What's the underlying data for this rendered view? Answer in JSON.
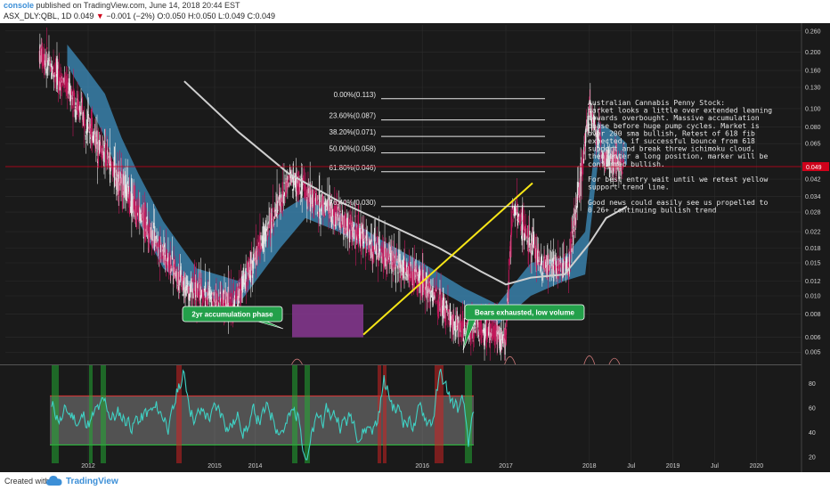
{
  "header": {
    "user": "console",
    "published": "published on TradingView.com, June 14, 2018 20:44 EST",
    "symbol_line_prefix": "ASX_DLY:QBL, 1D 0.049",
    "change": "−0.001 (−2%)",
    "ohlc": "O:0.050 H:0.050 L:0.049 C:0.049"
  },
  "footer": {
    "created": "Created with",
    "brand": "TradingView"
  },
  "colors": {
    "background": "#1a1a1a",
    "candle_up": "#e6e6e6",
    "candle_down": "#c2185b",
    "cloud": "#3d8fbf",
    "sma": "#cfcfcf",
    "trendline": "#f7e617",
    "rsi": "#3fd1c4",
    "price_tag": "#d0021b",
    "callout": "#23a04a"
  },
  "chart_data": [
    {
      "type": "line",
      "title": "ASX_DLY:QBL, 1D",
      "y_scale": "log",
      "y_ticks": [
        "0.260",
        "0.200",
        "0.160",
        "0.130",
        "0.100",
        "0.080",
        "0.065",
        "0.049",
        "0.042",
        "0.034",
        "0.028",
        "0.022",
        "0.018",
        "0.015",
        "0.012",
        "0.010",
        "0.008",
        "0.006",
        "0.005"
      ],
      "x_ticks": [
        "2012",
        "2014",
        "2015",
        "2016",
        "2017",
        "2018",
        "Jul",
        "2019",
        "Jul",
        "2020"
      ],
      "last_price": "0.049",
      "price_approx": [
        {
          "x": "2011-06",
          "y": 0.2
        },
        {
          "x": "2011-10",
          "y": 0.13
        },
        {
          "x": "2012-03",
          "y": 0.06
        },
        {
          "x": "2012-09",
          "y": 0.025
        },
        {
          "x": "2013-03",
          "y": 0.011
        },
        {
          "x": "2013-10",
          "y": 0.009
        },
        {
          "x": "2014-06",
          "y": 0.042
        },
        {
          "x": "2014-12",
          "y": 0.028
        },
        {
          "x": "2015-06",
          "y": 0.018
        },
        {
          "x": "2016-01",
          "y": 0.012
        },
        {
          "x": "2016-06",
          "y": 0.007
        },
        {
          "x": "2017-01",
          "y": 0.006
        },
        {
          "x": "2017-02",
          "y": 0.03
        },
        {
          "x": "2017-06",
          "y": 0.015
        },
        {
          "x": "2017-10",
          "y": 0.014
        },
        {
          "x": "2018-01",
          "y": 0.1
        },
        {
          "x": "2018-03",
          "y": 0.055
        },
        {
          "x": "2018-06",
          "y": 0.049
        }
      ],
      "fib_levels": [
        {
          "label": "0.00%(0.113)",
          "value": 0.113
        },
        {
          "label": "23.60%(0.087)",
          "value": 0.087
        },
        {
          "label": "38.20%(0.071)",
          "value": 0.071
        },
        {
          "label": "50.00%(0.058)",
          "value": 0.058
        },
        {
          "label": "61.80%(0.046)",
          "value": 0.046
        },
        {
          "label": "76.40%(0.030)",
          "value": 0.03
        }
      ],
      "annotations": [
        "2yr accumulation phase",
        "Bears exhausted, low volume"
      ],
      "note_lines": [
        "Australian Cannabis Penny Stock:",
        "market looks a little over extended leaning",
        "towards overbought. Massive accumulation",
        "phase before huge pump cycles. Market is",
        "over 200 sma bullish, Retest of 618 fib",
        "expected, if successful bounce from 618",
        "support and break threw ichimoku cloud,",
        "then enter a long position, marker will be",
        "confirmed bullish.",
        "",
        "For best entry wait until we retest yellow",
        "support trend line.",
        "",
        "Good news could easily see us propelled to",
        "0.26+ continuing bullish trend"
      ]
    },
    {
      "type": "line",
      "title": "",
      "y_ticks": [
        "80",
        "60",
        "40",
        "20"
      ],
      "band": [
        30,
        70
      ],
      "ylim": [
        15,
        95
      ]
    }
  ]
}
